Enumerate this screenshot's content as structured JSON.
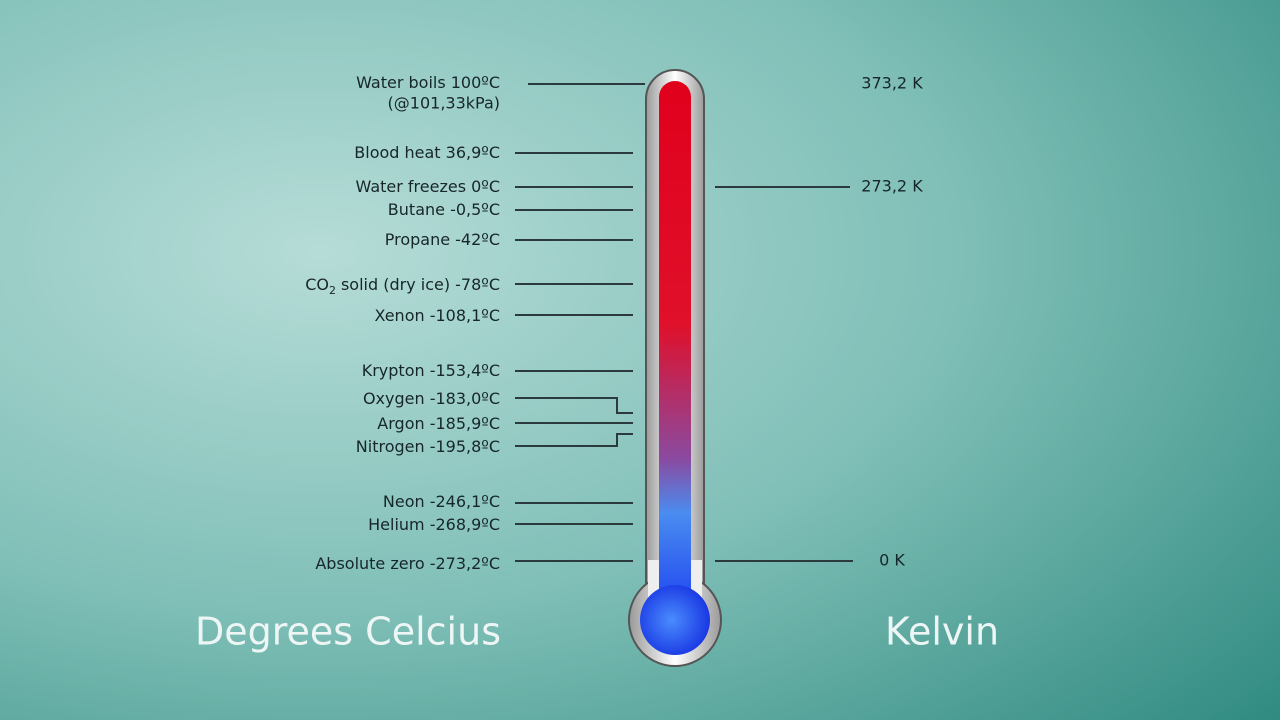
{
  "celsius": {
    "heading": "Degrees Celcius",
    "markers": [
      {
        "label": "Water boils 100ºC",
        "note": "(@101,33kPa)"
      },
      {
        "label": "Blood heat 36,9ºC"
      },
      {
        "label": "Water freezes 0ºC"
      },
      {
        "label": "Butane -0,5ºC"
      },
      {
        "label": "Propane -42ºC"
      },
      {
        "prefix": "CO",
        "subscript": "2",
        "label": "solid (dry ice) -78ºC"
      },
      {
        "label": "Xenon -108,1ºC"
      },
      {
        "label": "Krypton -153,4ºC"
      },
      {
        "label": "Oxygen -183,0ºC"
      },
      {
        "label": "Argon -185,9ºC"
      },
      {
        "label": "Nitrogen -195,8ºC"
      },
      {
        "label": "Neon -246,1ºC"
      },
      {
        "label": "Helium -268,9ºC"
      },
      {
        "label": "Absolute zero -273,2ºC"
      }
    ]
  },
  "kelvin": {
    "heading": "Kelvin",
    "markers": [
      {
        "label": "373,2 K"
      },
      {
        "label": "273,2 K"
      },
      {
        "label": "0 K"
      }
    ]
  }
}
